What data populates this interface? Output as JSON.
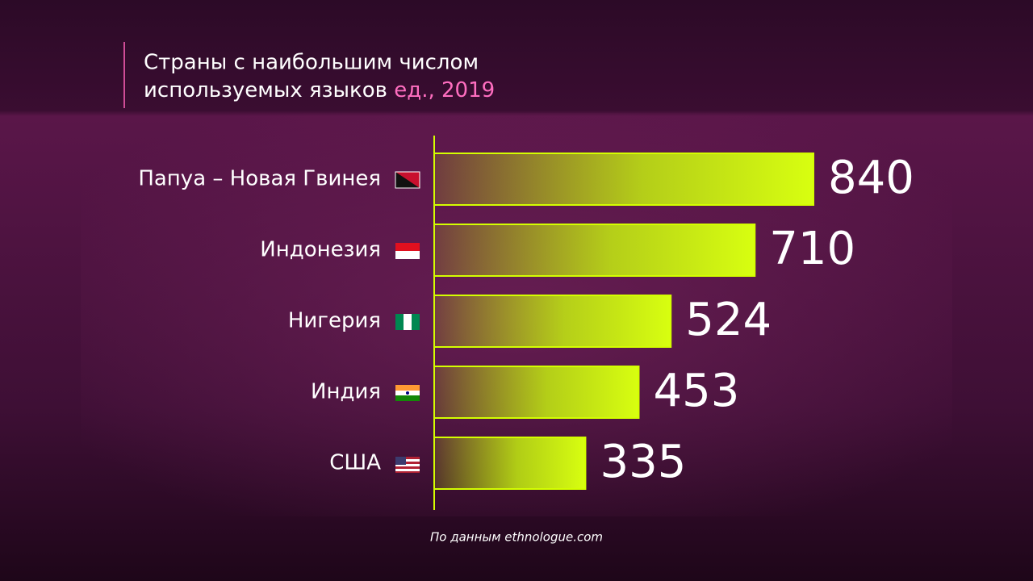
{
  "chart_data": {
    "type": "bar",
    "orientation": "horizontal",
    "title": [
      "Страны с наибольшим числом",
      "используемых языков"
    ],
    "subtitle": "ед., 2019",
    "categories": [
      "Папуа – Новая Гвинея",
      "Индонезия",
      "Нигерия",
      "Индия",
      "США"
    ],
    "values": [
      840,
      710,
      524,
      453,
      335
    ],
    "color": "#d4ff00",
    "source": "По данным ethnologue.com"
  }
}
